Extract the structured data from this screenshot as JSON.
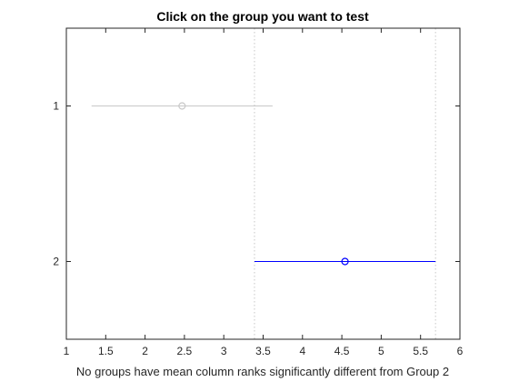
{
  "chart_data": {
    "type": "scatter",
    "title": "Click on the group you want to test",
    "xlabel": "No groups have mean column ranks significantly different from Group 2",
    "ylabel": "",
    "xlim": [
      1,
      6
    ],
    "ylim": [
      0.5,
      2.5
    ],
    "y_reversed": true,
    "x_ticks": [
      1,
      1.5,
      2,
      2.5,
      3,
      3.5,
      4,
      4.5,
      5,
      5.5,
      6
    ],
    "x_tick_labels": [
      "1",
      "1.5",
      "2",
      "2.5",
      "3",
      "3.5",
      "4",
      "4.5",
      "5",
      "5.5",
      "6"
    ],
    "y_ticks": [
      1,
      2
    ],
    "y_tick_labels": [
      "1",
      "2"
    ],
    "grid": false,
    "groups": [
      {
        "group": 1,
        "estimate": 2.47,
        "lower": 1.32,
        "upper": 3.62,
        "color": "#c8c8c8"
      },
      {
        "group": 2,
        "estimate": 4.54,
        "lower": 3.39,
        "upper": 5.69,
        "color": "#0000ff"
      }
    ],
    "reference_lines": {
      "x": [
        3.39,
        5.69
      ],
      "color": "#c8c8c8",
      "style": "dotted"
    },
    "colors": {
      "axis": "#262626",
      "selected_group": "#0000ff",
      "other_group": "#c8c8c8"
    }
  }
}
